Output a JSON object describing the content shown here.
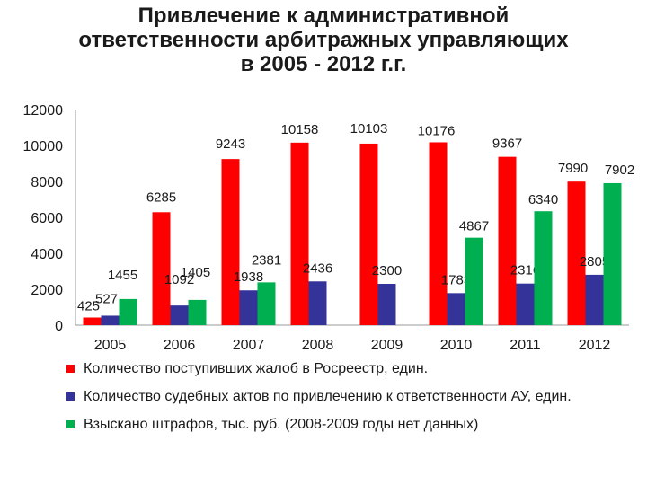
{
  "title": {
    "lines": [
      "Привлечение к административной",
      "ответственности арбитражных управляющих",
      "в 2005 - 2012 г.г."
    ]
  },
  "chart_data": {
    "type": "bar",
    "categories": [
      "2005",
      "2006",
      "2007",
      "2008",
      "2009",
      "2010",
      "2011",
      "2012"
    ],
    "ylim": [
      0,
      12000
    ],
    "yticks": [
      "0",
      "2000",
      "4000",
      "6000",
      "8000",
      "10000",
      "12000"
    ],
    "grid": false,
    "legend_position": "bottom",
    "series": [
      {
        "name": "Количество поступивших жалоб в Росреестр, един.",
        "color": "#ff0000",
        "values": [
          425,
          6285,
          9243,
          10158,
          10103,
          10176,
          9367,
          7990
        ],
        "labels": [
          "425",
          "6285",
          "9243",
          "10158",
          "10103",
          "10176",
          "9367",
          "7990"
        ]
      },
      {
        "name": "Количество судебных актов по привлечению к ответственности АУ, един.",
        "color": "#333399",
        "values": [
          527,
          1092,
          1938,
          2436,
          2300,
          1783,
          2316,
          2805
        ],
        "labels": [
          "527",
          "1092",
          "1938",
          "2436",
          "2300",
          "1783",
          "2316",
          "2805"
        ]
      },
      {
        "name": "Взыскано штрафов, тыс. руб. (2008-2009 годы нет данных)",
        "color": "#00b050",
        "values": [
          1455,
          1405,
          2381,
          null,
          null,
          4867,
          6340,
          7902
        ],
        "labels": [
          "1455",
          "1405",
          "2381",
          "",
          "",
          "4867",
          "6340",
          "7902"
        ]
      }
    ]
  }
}
